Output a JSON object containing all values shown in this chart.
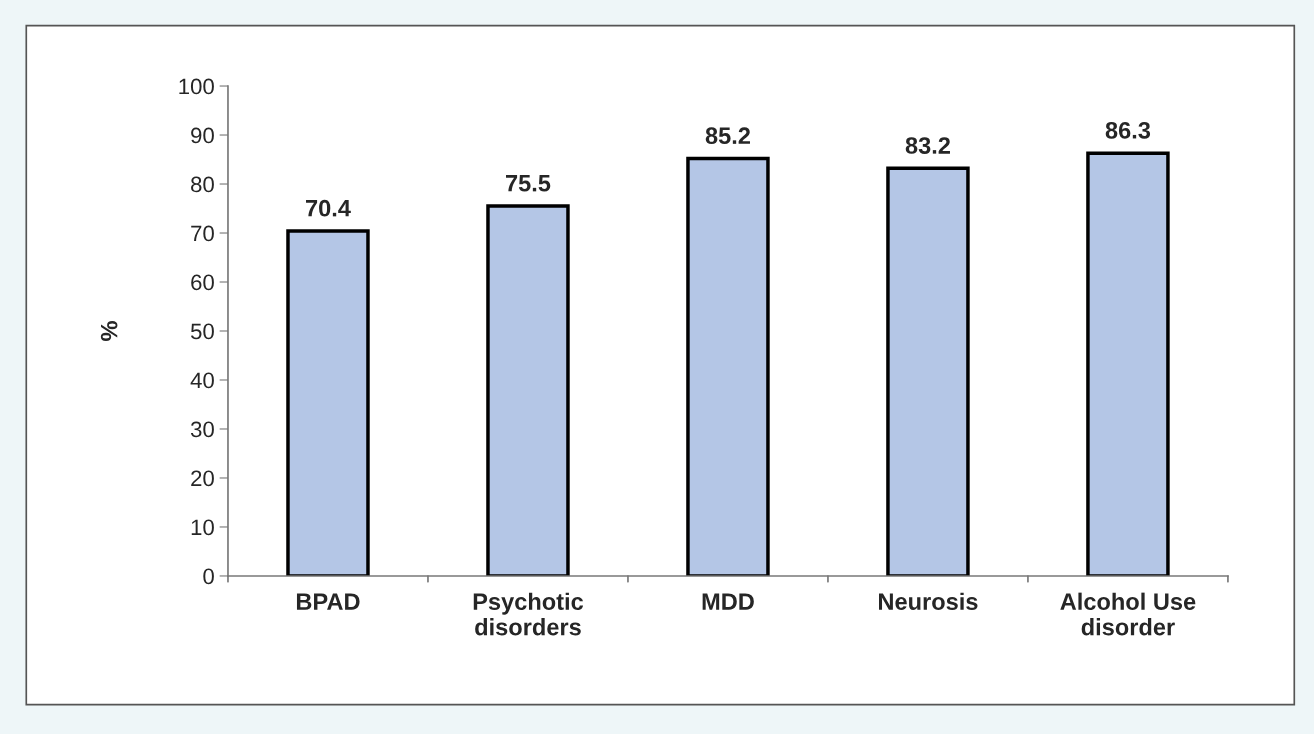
{
  "chart_data": {
    "type": "bar",
    "ylabel": "%",
    "categories": [
      "BPAD",
      "Psychotic\ndisorders",
      "MDD",
      "Neurosis",
      "Alcohol Use\ndisorder"
    ],
    "values": [
      70.4,
      75.5,
      85.2,
      83.2,
      86.3
    ],
    "color": "#b4c6e6",
    "ylim": [
      0,
      100
    ],
    "yticks": [
      0,
      10,
      20,
      30,
      40,
      50,
      60,
      70,
      80,
      90,
      100
    ],
    "data_labels": true,
    "grid": false,
    "legend": false
  }
}
